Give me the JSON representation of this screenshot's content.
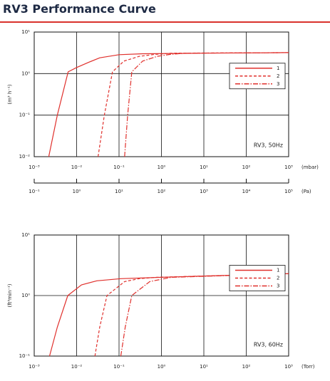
{
  "title": "RV3 Performance Curve",
  "chart_data": [
    {
      "type": "line",
      "y_label": "(m³ h⁻¹)",
      "x_unit": "(mbar)",
      "annotation": "RV3, 50Hz",
      "log_x": true,
      "log_y": true,
      "grid": true,
      "legend": "upper right",
      "xlim": [
        0.001,
        1000
      ],
      "xticks": [
        {
          "value": 0.001,
          "label": "10⁻³"
        },
        {
          "value": 0.01,
          "label": "10⁻²"
        },
        {
          "value": 0.1,
          "label": "10⁻¹"
        },
        {
          "value": 1,
          "label": "10⁰"
        },
        {
          "value": 10,
          "label": "10¹"
        },
        {
          "value": 100,
          "label": "10²"
        },
        {
          "value": 1000,
          "label": "10³"
        }
      ],
      "x2_unit": "(Pa)",
      "x2lim": [
        0.1,
        100000
      ],
      "x2ticks": [
        {
          "value": 0.1,
          "label": "10⁻¹"
        },
        {
          "value": 1,
          "label": "10⁰"
        },
        {
          "value": 10,
          "label": "10¹"
        },
        {
          "value": 100,
          "label": "10²"
        },
        {
          "value": 1000,
          "label": "10³"
        },
        {
          "value": 10000,
          "label": "10⁴"
        },
        {
          "value": 100000,
          "label": "10⁵"
        }
      ],
      "ylim": [
        0.01,
        10
      ],
      "yticks": [
        {
          "value": 0.01,
          "label": "10⁻²"
        },
        {
          "value": 0.1,
          "label": "10⁻¹"
        },
        {
          "value": 1,
          "label": "10⁰"
        },
        {
          "value": 10,
          "label": "10¹"
        }
      ],
      "series": [
        {
          "name": "1",
          "color": "#e0302c",
          "linestyle": "solid",
          "x": [
            0.0022,
            0.0035,
            0.0063,
            0.01,
            0.02,
            0.035,
            0.1,
            0.36,
            10,
            1000
          ],
          "values": [
            0.01,
            0.1,
            1.1,
            1.4,
            1.9,
            2.4,
            2.85,
            3.0,
            3.1,
            3.2
          ]
        },
        {
          "name": "2",
          "color": "#e0302c",
          "linestyle": "dashed",
          "x": [
            0.032,
            0.045,
            0.07,
            0.13,
            0.3,
            0.7,
            1.7,
            1000
          ],
          "values": [
            0.01,
            0.1,
            1.1,
            2.0,
            2.6,
            2.9,
            3.1,
            3.2
          ]
        },
        {
          "name": "3",
          "color": "#e0302c",
          "linestyle": "dashdot",
          "x": [
            0.135,
            0.16,
            0.2,
            0.36,
            0.8,
            1.6,
            3.6,
            1000
          ],
          "values": [
            0.01,
            0.1,
            1.1,
            2.0,
            2.6,
            2.9,
            3.1,
            3.2
          ]
        }
      ]
    },
    {
      "type": "line",
      "y_label": "(ft³min⁻¹)",
      "x_unit": "(Torr)",
      "annotation": "RV3, 60Hz",
      "log_x": true,
      "log_y": true,
      "grid": true,
      "legend": "upper right",
      "xlim": [
        0.001,
        1000
      ],
      "xticks": [
        {
          "value": 0.001,
          "label": "10⁻³"
        },
        {
          "value": 0.01,
          "label": "10⁻²"
        },
        {
          "value": 0.1,
          "label": "10⁻¹"
        },
        {
          "value": 1,
          "label": "10⁰"
        },
        {
          "value": 10,
          "label": "10¹"
        },
        {
          "value": 100,
          "label": "10²"
        },
        {
          "value": 1000,
          "label": "10³"
        }
      ],
      "ylim": [
        0.1,
        10
      ],
      "yticks": [
        {
          "value": 0.1,
          "label": "10⁻¹"
        },
        {
          "value": 1,
          "label": "10⁰"
        },
        {
          "value": 10,
          "label": "10¹"
        }
      ],
      "series": [
        {
          "name": "1",
          "color": "#e0302c",
          "linestyle": "solid",
          "x": [
            0.0023,
            0.0035,
            0.0062,
            0.013,
            0.03,
            0.11,
            1,
            10,
            1000
          ],
          "values": [
            0.1,
            0.3,
            1.0,
            1.5,
            1.75,
            1.9,
            2.0,
            2.1,
            2.3
          ]
        },
        {
          "name": "2",
          "color": "#e0302c",
          "linestyle": "dashed",
          "x": [
            0.027,
            0.035,
            0.052,
            0.135,
            0.3,
            0.78,
            1000
          ],
          "values": [
            0.1,
            0.3,
            1.0,
            1.7,
            1.9,
            2.0,
            2.3
          ]
        },
        {
          "name": "3",
          "color": "#e0302c",
          "linestyle": "dashdot",
          "x": [
            0.11,
            0.14,
            0.2,
            0.53,
            1.7,
            1000
          ],
          "values": [
            0.1,
            0.3,
            1.0,
            1.7,
            2.0,
            2.3
          ]
        }
      ]
    }
  ]
}
